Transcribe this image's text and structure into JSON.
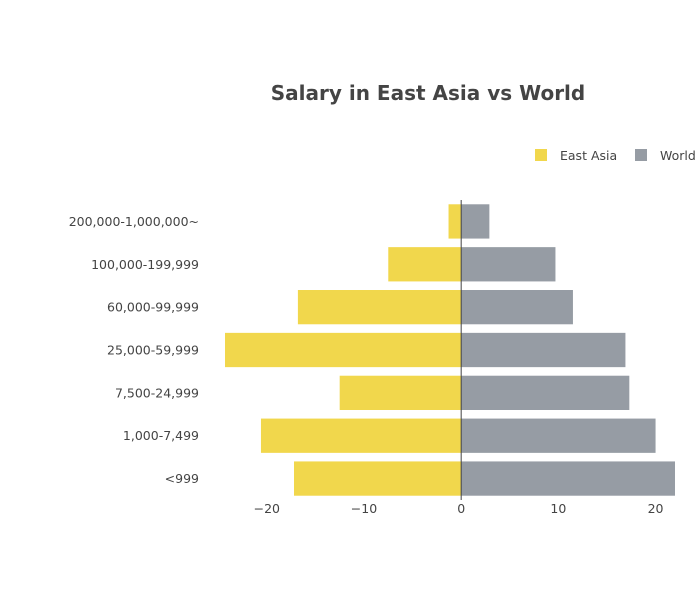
{
  "chart_data": {
    "type": "bar",
    "orientation": "horizontal",
    "title": "Salary in East Asia vs World",
    "categories": [
      "200,000-1,000,000~",
      "100,000-199,999",
      "60,000-99,999",
      "25,000-59,999",
      "7,500-24,999",
      "1,000-7,499",
      "<999"
    ],
    "series": [
      {
        "name": "East Asia",
        "color": "#f1d74c",
        "values": [
          -1.3,
          -7.5,
          -16.8,
          -24.3,
          -12.5,
          -20.6,
          -17.2
        ]
      },
      {
        "name": "World",
        "color": "#969ca4",
        "values": [
          2.9,
          9.7,
          11.5,
          16.9,
          17.3,
          20.0,
          22.0
        ]
      }
    ],
    "xlim": [
      -24.3,
      22.0
    ],
    "xticks": [
      -20,
      -10,
      0,
      10,
      20
    ],
    "xtick_labels": [
      "−20",
      "−10",
      "0",
      "10",
      "20"
    ],
    "legend": {
      "placement": "top-right",
      "entries": [
        "East Asia",
        "World"
      ]
    },
    "xlabel": "",
    "ylabel": "",
    "grid": false
  }
}
